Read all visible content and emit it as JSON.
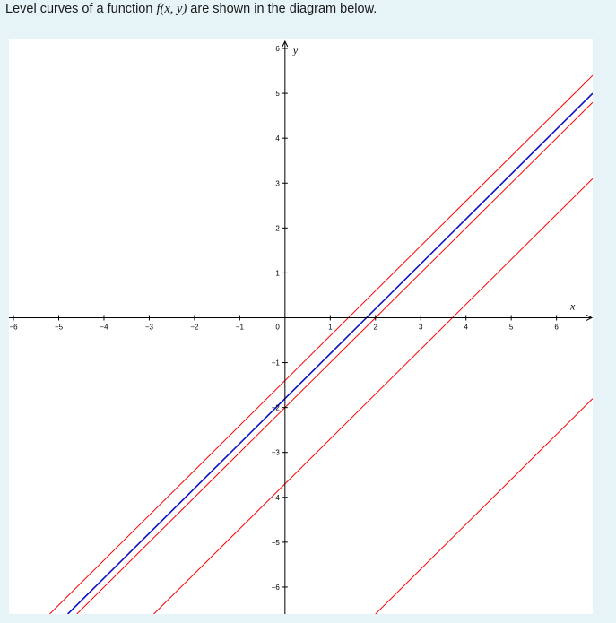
{
  "prompt": {
    "before": "Level curves of a function ",
    "func": "f(x, y)",
    "after": " are shown in the diagram below."
  },
  "colors": {
    "background": "#e6f4f8",
    "plot_background": "#ffffff",
    "red_curve": "#ff0000",
    "blue_curve": "#1010c8",
    "axis": "#000000"
  },
  "chart_data": {
    "type": "line",
    "title": "",
    "xlabel": "x",
    "ylabel": "y",
    "xlim": [
      -6.1,
      6.8
    ],
    "ylim": [
      -6.6,
      6.2
    ],
    "grid": false,
    "x_ticks": [
      -6,
      -5,
      -4,
      -3,
      -2,
      -1,
      1,
      2,
      3,
      4,
      5,
      6
    ],
    "y_ticks": [
      -6,
      -5,
      -4,
      -3,
      -2,
      -1,
      1,
      2,
      3,
      4,
      5,
      6
    ],
    "origin_label": "0",
    "series": [
      {
        "color": "#ff0000",
        "points": [
          [
            -5.2,
            -6.6
          ],
          [
            6.8,
            5.4
          ]
        ]
      },
      {
        "color": "#1010c8",
        "points": [
          [
            -4.8,
            -6.6
          ],
          [
            6.8,
            5.0
          ]
        ]
      },
      {
        "color": "#ff0000",
        "points": [
          [
            -4.6,
            -6.6
          ],
          [
            6.8,
            4.8
          ]
        ]
      },
      {
        "color": "#ff0000",
        "points": [
          [
            -2.9,
            -6.6
          ],
          [
            6.8,
            3.1
          ]
        ]
      },
      {
        "color": "#ff0000",
        "points": [
          [
            2.0,
            -6.6
          ],
          [
            6.8,
            -1.8
          ]
        ]
      }
    ]
  }
}
